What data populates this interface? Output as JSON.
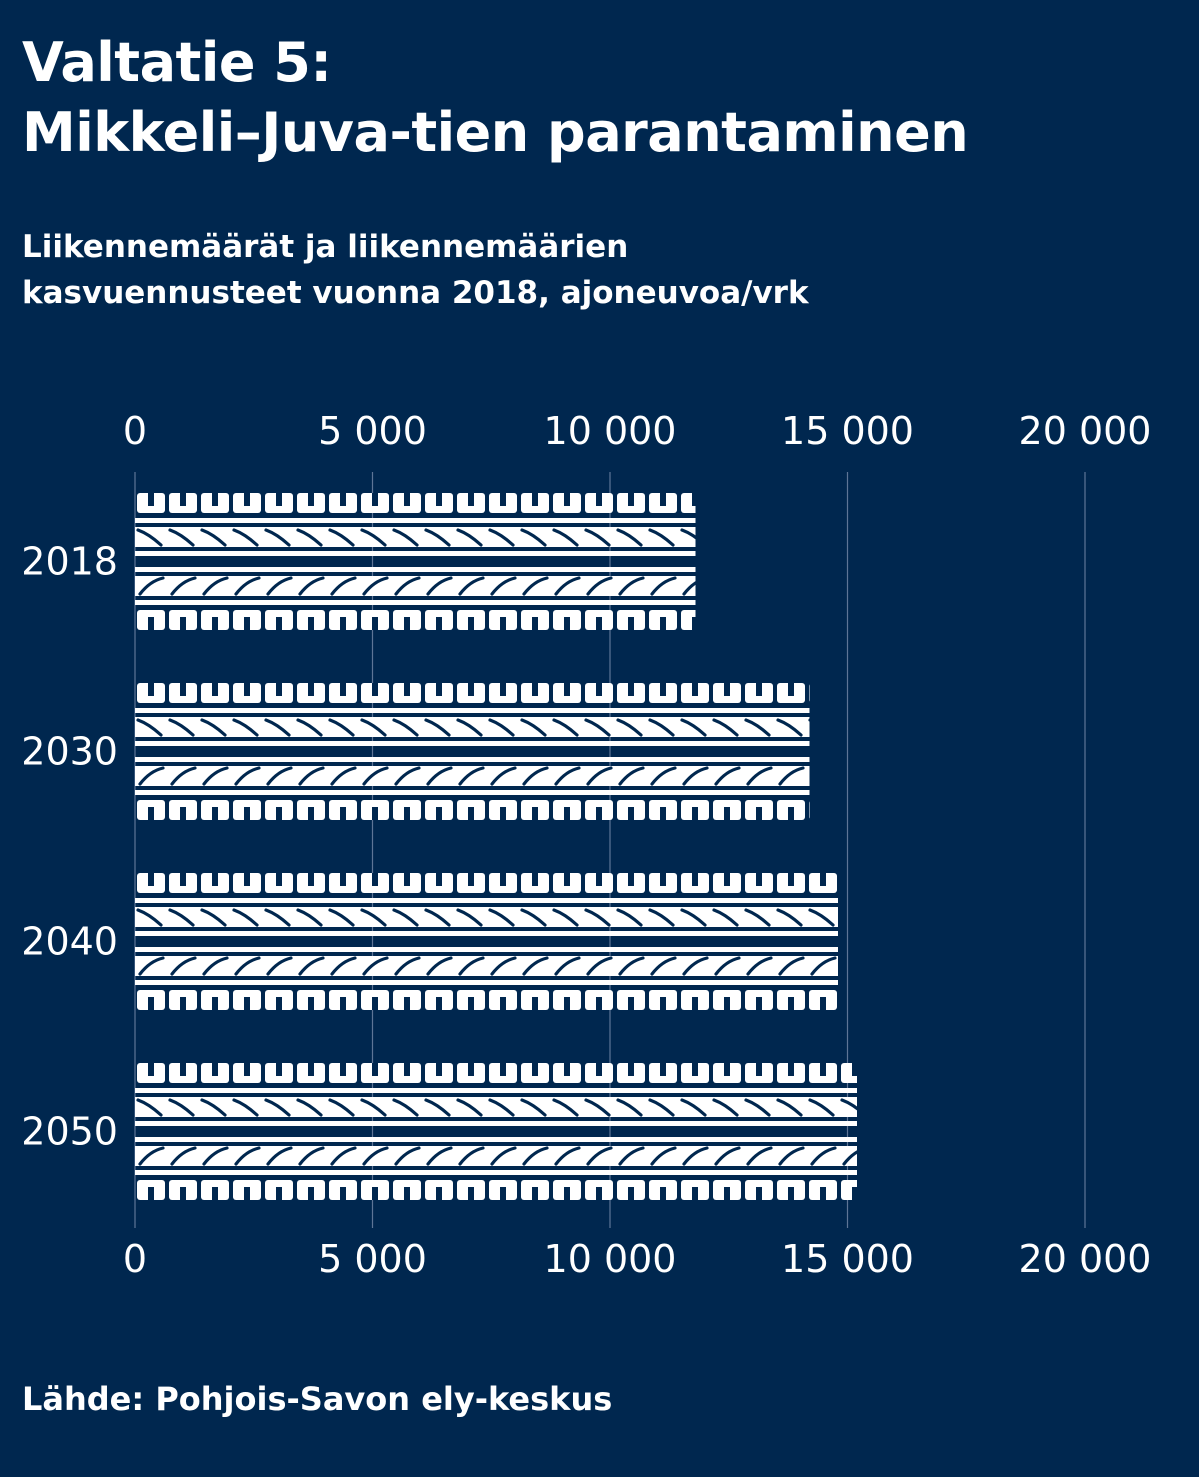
{
  "title_line1": "Valtatie 5:",
  "title_line2": "Mikkeli–Juva-tien parantaminen",
  "subtitle_line1": "Liikennemäärät ja liikennemäärien",
  "subtitle_line2": "kasvuennusteet vuonna 2018, ajoneuvoa/vrk",
  "source": "Lähde: Pohjois-Savon ely-keskus",
  "colors": {
    "background": "#00274f",
    "bar": "#ffffff",
    "grid": "#5e7596"
  },
  "chart_data": {
    "type": "bar",
    "orientation": "horizontal",
    "categories": [
      "2018",
      "2030",
      "2040",
      "2050"
    ],
    "values": [
      11800,
      14200,
      14800,
      15200
    ],
    "xlim": [
      0,
      20000
    ],
    "xticks": [
      0,
      5000,
      10000,
      15000,
      20000
    ],
    "xtick_labels": [
      "0",
      "5 000",
      "10 000",
      "15 000",
      "20 000"
    ],
    "grid": true,
    "bar_style": "tire-tread"
  }
}
